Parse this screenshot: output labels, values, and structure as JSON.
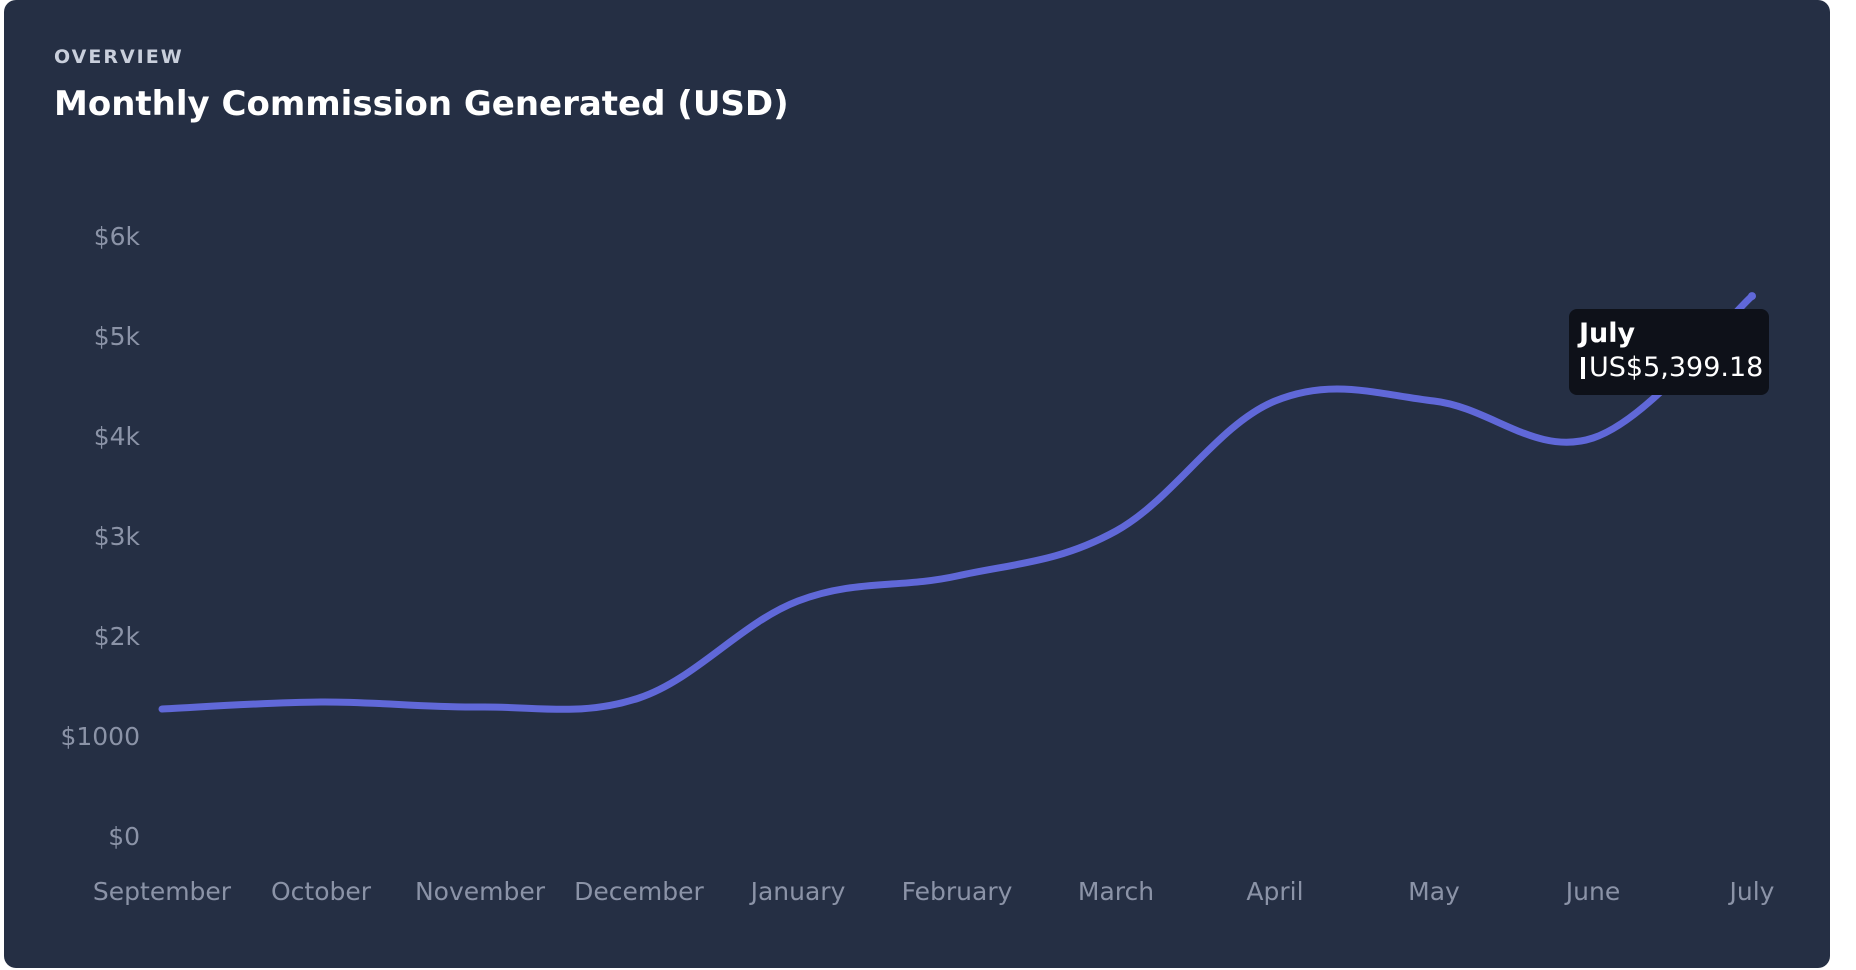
{
  "card": {
    "eyebrow": "OVERVIEW",
    "title": "Monthly Commission Generated (USD)"
  },
  "colors": {
    "background": "#252f44",
    "line": "#6068d8",
    "tick_text": "#8b93a7",
    "tooltip_bg": "#0e1119"
  },
  "chart_data": {
    "type": "line",
    "title": "Monthly Commission Generated (USD)",
    "categories": [
      "September",
      "October",
      "November",
      "December",
      "January",
      "February",
      "March",
      "April",
      "May",
      "June",
      "July"
    ],
    "series": [
      {
        "values": [
          1270,
          1340,
          1290,
          1380,
          2350,
          2600,
          3050,
          4350,
          4350,
          3980,
          5399.18
        ]
      }
    ],
    "y_ticks": [
      {
        "value": 0,
        "label": "$0"
      },
      {
        "value": 1000,
        "label": "$1000"
      },
      {
        "value": 2000,
        "label": "$2k"
      },
      {
        "value": 3000,
        "label": "$3k"
      },
      {
        "value": 4000,
        "label": "$4k"
      },
      {
        "value": 5000,
        "label": "$5k"
      },
      {
        "value": 6000,
        "label": "$6k"
      }
    ],
    "ylim": [
      0,
      6000
    ],
    "grid": false,
    "legend": "none",
    "curve": "smooth"
  },
  "tooltip": {
    "category": "July",
    "value_label": "US$5,399.18"
  }
}
